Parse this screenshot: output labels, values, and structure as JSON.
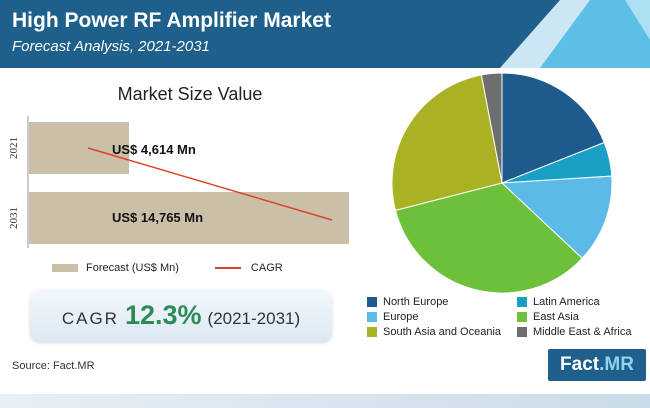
{
  "header": {
    "title": "High Power RF Amplifier Market",
    "subtitle": "Forecast Analysis, 2021-2031",
    "colors": {
      "primary": "#1f5f8b",
      "accent": "#5bbfe6"
    }
  },
  "chart_data": [
    {
      "type": "bar",
      "orientation": "horizontal",
      "title": "Market Size Value",
      "categories": [
        "2021",
        "2031"
      ],
      "series": [
        {
          "name": "Forecast (US$ Mn)",
          "values": [
            4614,
            14765
          ],
          "color": "#cbbfa8"
        }
      ],
      "data_labels": [
        "US$ 4,614 Mn",
        "US$ 14,765 Mn"
      ],
      "overlay_line": {
        "name": "CAGR",
        "color": "#e0402a"
      },
      "legend": [
        "Forecast (US$ Mn)",
        "CAGR"
      ],
      "legend_position": "bottom",
      "xlim": [
        0,
        14765
      ]
    },
    {
      "type": "pie",
      "labels": [
        "North Europe",
        "Latin America",
        "Europe",
        "East Asia",
        "South Asia and Oceania",
        "Middle East & Africa"
      ],
      "values": [
        19,
        5,
        13,
        34,
        26,
        3
      ],
      "colors": [
        "#1f5a8c",
        "#1aa0c4",
        "#5bbbe6",
        "#6cc03a",
        "#a9b223",
        "#6e6e6e"
      ],
      "legend_position": "bottom-right"
    }
  ],
  "cagr": {
    "word": "CAGR",
    "value": "12.3%",
    "period": "(2021-2031)"
  },
  "source": "Source: Fact.MR",
  "logo": {
    "main": "Fact",
    "suffix": ".MR"
  }
}
